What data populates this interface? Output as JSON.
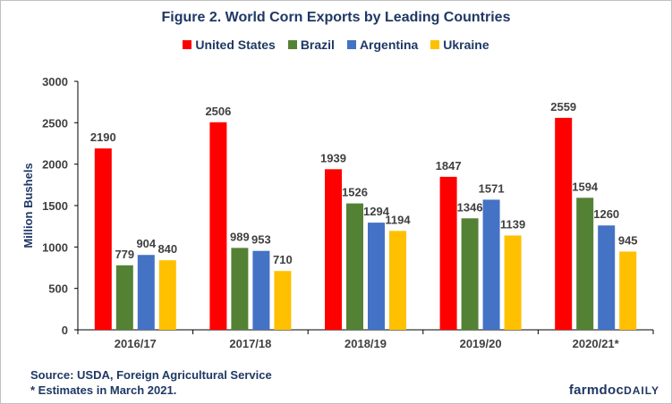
{
  "chart_data": {
    "type": "bar",
    "title": "Figure 2. World Corn Exports by Leading Countries",
    "xlabel": "",
    "ylabel": "Million Bushels",
    "ylim": [
      0,
      3000
    ],
    "yticks": [
      0,
      500,
      1000,
      1500,
      2000,
      2500,
      3000
    ],
    "categories": [
      "2016/17",
      "2017/18",
      "2018/19",
      "2019/20",
      "2020/21*"
    ],
    "series": [
      {
        "name": "United States",
        "color": "#ff0000",
        "values": [
          2190,
          2506,
          1939,
          1847,
          2559
        ]
      },
      {
        "name": "Brazil",
        "color": "#548235",
        "values": [
          779,
          989,
          1526,
          1346,
          1594
        ]
      },
      {
        "name": "Argentina",
        "color": "#4472c4",
        "values": [
          904,
          953,
          1294,
          1571,
          1260
        ]
      },
      {
        "name": "Ukraine",
        "color": "#ffc000",
        "values": [
          840,
          710,
          1194,
          1139,
          945
        ]
      }
    ],
    "grid": false,
    "legend_position": "top"
  },
  "footer": {
    "source": "Source:  USDA, Foreign Agricultural Service",
    "note": "* Estimates  in March 2021."
  },
  "brand": {
    "part1": "farmdoc",
    "part2": "DAILY"
  }
}
